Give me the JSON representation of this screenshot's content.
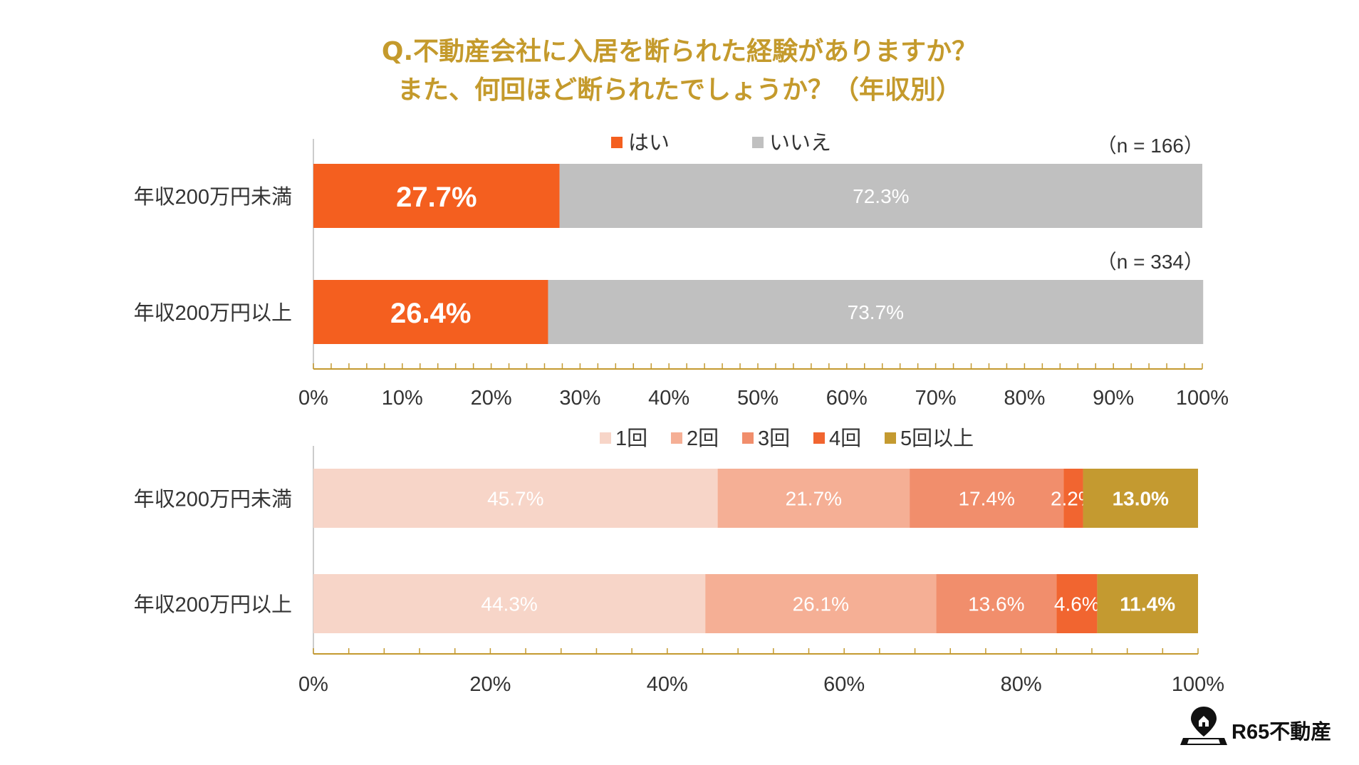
{
  "title": {
    "line1": "Q.不動産会社に入居を断られた経験がありますか？",
    "line2": "また、何回ほど断られたでしょうか？（年収別）"
  },
  "colors": {
    "title": "#c49a2c",
    "yes": "#f45f1f",
    "no": "#c0c0c0",
    "times1": "#f7d5c8",
    "times2": "#f5af95",
    "times3": "#f18e6c",
    "times4": "#f16530",
    "times5plus": "#c49a30",
    "axis": "#c49a30"
  },
  "chart_data": [
    {
      "type": "bar",
      "orientation": "horizontal",
      "stacked": true,
      "categories": [
        "年収200万円未満",
        "年収200万円以上"
      ],
      "sample_sizes": [
        "（n = 166）",
        "（n = 334）"
      ],
      "series": [
        {
          "name": "はい",
          "values": [
            27.7,
            26.4
          ],
          "labels": [
            "27.7%",
            "26.4%"
          ]
        },
        {
          "name": "いいえ",
          "values": [
            72.3,
            73.7
          ],
          "labels": [
            "72.3%",
            "73.7%"
          ]
        }
      ],
      "xlim": [
        0,
        100
      ],
      "xticks": [
        "0%",
        "10%",
        "20%",
        "30%",
        "40%",
        "50%",
        "60%",
        "70%",
        "80%",
        "90%",
        "100%"
      ],
      "legend_position": "top"
    },
    {
      "type": "bar",
      "orientation": "horizontal",
      "stacked": true,
      "categories": [
        "年収200万円未満",
        "年収200万円以上"
      ],
      "series": [
        {
          "name": "1回",
          "values": [
            45.7,
            44.3
          ],
          "labels": [
            "45.7%",
            "44.3%"
          ]
        },
        {
          "name": "2回",
          "values": [
            21.7,
            26.1
          ],
          "labels": [
            "21.7%",
            "26.1%"
          ]
        },
        {
          "name": "3回",
          "values": [
            17.4,
            13.6
          ],
          "labels": [
            "17.4%",
            "13.6%"
          ]
        },
        {
          "name": "4回",
          "values": [
            2.2,
            4.6
          ],
          "labels": [
            "2.2%",
            "4.6%"
          ]
        },
        {
          "name": "5回以上",
          "values": [
            13.0,
            11.4
          ],
          "labels": [
            "13.0%",
            "11.4%"
          ]
        }
      ],
      "xlim": [
        0,
        100
      ],
      "xticks": [
        "0%",
        "20%",
        "40%",
        "60%",
        "80%",
        "100%"
      ],
      "legend_position": "top"
    }
  ],
  "brand": {
    "name": "R65不動産",
    "icon": "map-pin-house-icon"
  }
}
